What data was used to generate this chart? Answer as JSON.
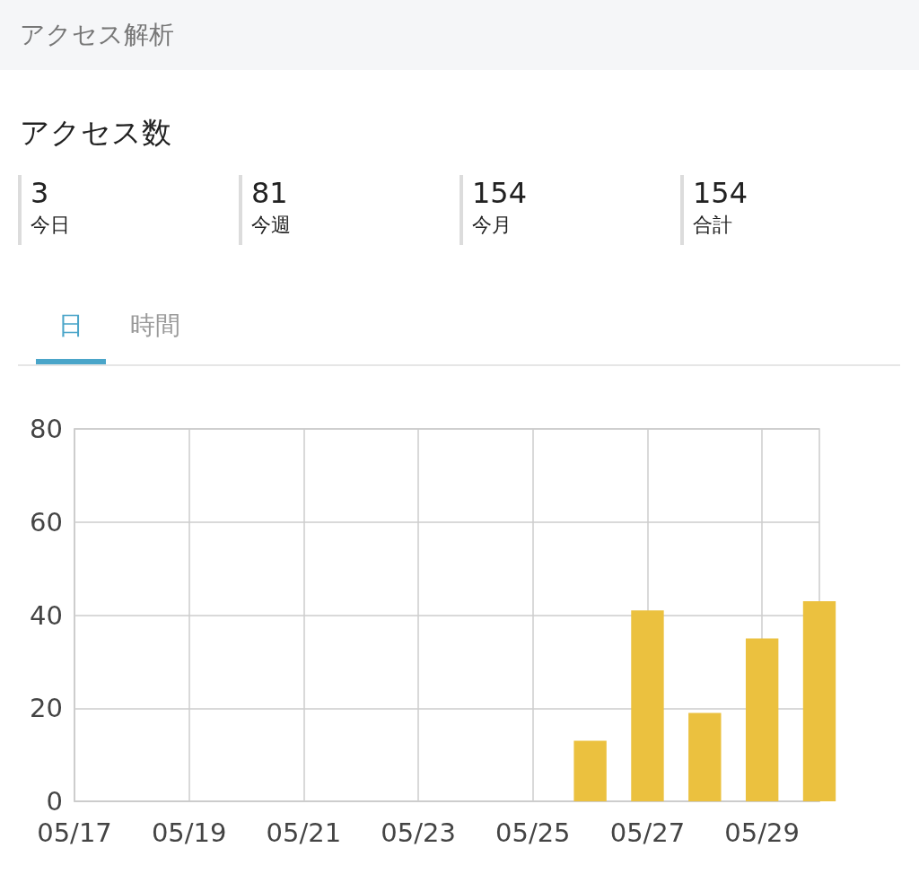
{
  "chart_data": [
    {
      "type": "other",
      "title": "アクセス解析",
      "subtitle": "アクセス数",
      "categories": [
        "今日",
        "今週",
        "今月",
        "合計"
      ],
      "values": [
        3,
        81,
        154,
        154
      ],
      "data_labels": true
    },
    {
      "type": "bar",
      "annotations": [
        "日",
        "時間"
      ],
      "x": [
        "--05-26",
        "--05-27",
        "--05-28",
        "--05-29",
        "--05-30"
      ],
      "values": [
        13,
        41,
        19,
        35,
        43
      ],
      "color": "#ebc13f",
      "xlim": [
        "--05-17",
        "--05-30"
      ],
      "xticks": [
        {
          "value": "--05-17",
          "label": "05/17"
        },
        {
          "value": "--05-19",
          "label": "05/19"
        },
        {
          "value": "--05-21",
          "label": "05/21"
        },
        {
          "value": "--05-23",
          "label": "05/23"
        },
        {
          "value": "--05-25",
          "label": "05/25"
        },
        {
          "value": "--05-27",
          "label": "05/27"
        },
        {
          "value": "--05-29",
          "label": "05/29"
        }
      ],
      "ylim": [
        0,
        80
      ],
      "yticks": [
        0,
        20,
        40,
        60,
        80
      ],
      "grid": true
    }
  ]
}
